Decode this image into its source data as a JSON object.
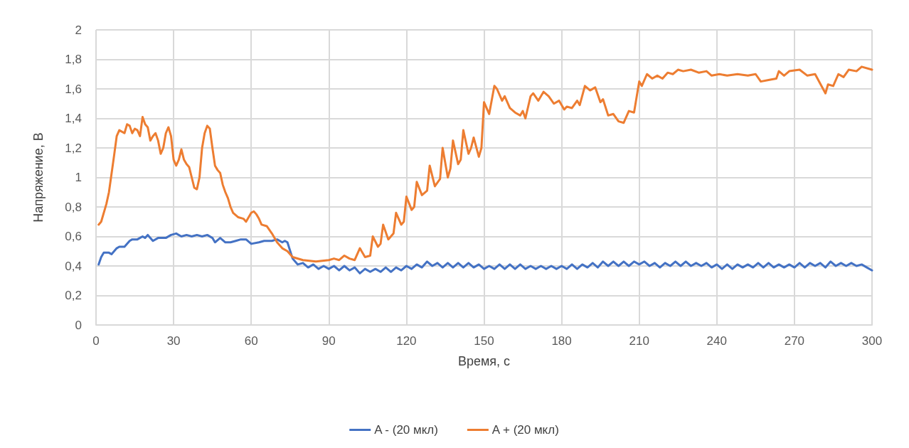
{
  "chart_data": {
    "type": "line",
    "xlabel": "Время, с",
    "ylabel": "Напряжение, В",
    "legend": "bottom",
    "grid": true,
    "marker": "none",
    "line_style": "solid",
    "xlim": [
      0,
      300
    ],
    "xticks": [
      0,
      30,
      60,
      90,
      120,
      150,
      180,
      210,
      240,
      270,
      300
    ],
    "ylim": [
      0,
      2
    ],
    "yticks": [
      0,
      {
        "value": 0.2,
        "label": "0,2"
      },
      {
        "value": 0.4,
        "label": "0,4"
      },
      {
        "value": 0.6,
        "label": "0,6"
      },
      {
        "value": 0.8,
        "label": "0,8"
      },
      1,
      {
        "value": 1.2,
        "label": "1,2"
      },
      {
        "value": 1.4,
        "label": "1,4"
      },
      {
        "value": 1.6,
        "label": "1,6"
      },
      {
        "value": 1.8,
        "label": "1,8"
      },
      2
    ],
    "series": [
      {
        "name": "A - (20 мкл)",
        "color": "#4472c4",
        "x": [
          1,
          2,
          3,
          5,
          6,
          8,
          9,
          11,
          13,
          14,
          16,
          18,
          19,
          20,
          22,
          24,
          27,
          29,
          31,
          33,
          35,
          37,
          39,
          41,
          43,
          45,
          46,
          48,
          50,
          52,
          54,
          56,
          58,
          60,
          63,
          65,
          68,
          70,
          72,
          73,
          74,
          76,
          78,
          80,
          82,
          84,
          86,
          88,
          90,
          92,
          94,
          96,
          98,
          100,
          102,
          104,
          106,
          108,
          110,
          112,
          114,
          116,
          118,
          120,
          122,
          124,
          126,
          128,
          130,
          132,
          134,
          136,
          138,
          140,
          142,
          144,
          146,
          148,
          150,
          152,
          154,
          156,
          158,
          160,
          162,
          164,
          166,
          168,
          170,
          172,
          174,
          176,
          178,
          180,
          182,
          184,
          186,
          188,
          190,
          192,
          194,
          196,
          198,
          200,
          202,
          204,
          206,
          208,
          210,
          212,
          214,
          216,
          218,
          220,
          222,
          224,
          226,
          228,
          230,
          232,
          234,
          236,
          238,
          240,
          242,
          244,
          246,
          248,
          250,
          252,
          254,
          256,
          258,
          260,
          262,
          264,
          266,
          268,
          270,
          272,
          274,
          276,
          278,
          280,
          282,
          284,
          286,
          288,
          290,
          292,
          294,
          296,
          298,
          300
        ],
        "values": [
          0.41,
          0.46,
          0.49,
          0.49,
          0.48,
          0.52,
          0.53,
          0.53,
          0.57,
          0.58,
          0.58,
          0.6,
          0.59,
          0.61,
          0.57,
          0.59,
          0.59,
          0.61,
          0.62,
          0.6,
          0.61,
          0.6,
          0.61,
          0.6,
          0.61,
          0.59,
          0.56,
          0.59,
          0.56,
          0.56,
          0.57,
          0.58,
          0.58,
          0.55,
          0.56,
          0.57,
          0.57,
          0.58,
          0.56,
          0.57,
          0.56,
          0.45,
          0.41,
          0.42,
          0.39,
          0.41,
          0.38,
          0.4,
          0.38,
          0.4,
          0.37,
          0.4,
          0.37,
          0.39,
          0.35,
          0.38,
          0.36,
          0.38,
          0.36,
          0.39,
          0.36,
          0.39,
          0.37,
          0.4,
          0.38,
          0.41,
          0.39,
          0.43,
          0.4,
          0.42,
          0.39,
          0.42,
          0.39,
          0.42,
          0.39,
          0.42,
          0.39,
          0.41,
          0.38,
          0.4,
          0.38,
          0.41,
          0.38,
          0.41,
          0.38,
          0.41,
          0.38,
          0.4,
          0.38,
          0.4,
          0.38,
          0.4,
          0.38,
          0.4,
          0.38,
          0.41,
          0.38,
          0.41,
          0.39,
          0.42,
          0.39,
          0.43,
          0.4,
          0.43,
          0.4,
          0.43,
          0.4,
          0.43,
          0.41,
          0.43,
          0.4,
          0.42,
          0.39,
          0.42,
          0.4,
          0.43,
          0.4,
          0.43,
          0.4,
          0.42,
          0.4,
          0.42,
          0.39,
          0.41,
          0.38,
          0.41,
          0.38,
          0.41,
          0.39,
          0.41,
          0.39,
          0.42,
          0.39,
          0.42,
          0.39,
          0.41,
          0.39,
          0.41,
          0.39,
          0.42,
          0.39,
          0.42,
          0.4,
          0.42,
          0.39,
          0.43,
          0.4,
          0.42,
          0.4,
          0.42,
          0.4,
          0.41,
          0.39,
          0.37
        ]
      },
      {
        "name": "A + (20 мкл)",
        "color": "#ed7d31",
        "x": [
          1,
          2,
          4,
          5,
          7,
          8,
          9,
          11,
          12,
          13,
          14,
          15,
          16,
          17,
          18,
          19,
          20,
          21,
          22,
          23,
          24,
          25,
          26,
          27,
          28,
          29,
          30,
          31,
          32,
          33,
          34,
          35,
          36,
          37,
          38,
          39,
          40,
          41,
          42,
          43,
          44,
          45,
          46,
          47,
          48,
          49,
          50,
          51,
          52,
          53,
          55,
          57,
          58,
          59,
          60,
          61,
          62,
          63,
          64,
          66,
          68,
          70,
          72,
          74,
          76,
          80,
          85,
          90,
          92,
          94,
          96,
          98,
          100,
          102,
          104,
          106,
          107,
          109,
          110,
          111,
          113,
          115,
          116,
          118,
          119,
          120,
          122,
          123,
          124,
          126,
          128,
          129,
          131,
          133,
          134,
          136,
          137,
          138,
          140,
          141,
          142,
          144,
          145,
          146,
          148,
          149,
          150,
          152,
          154,
          155,
          157,
          158,
          160,
          162,
          164,
          165,
          166,
          168,
          169,
          171,
          173,
          175,
          177,
          179,
          181,
          182,
          184,
          186,
          187,
          189,
          191,
          193,
          195,
          196,
          198,
          200,
          202,
          204,
          206,
          208,
          210,
          211,
          213,
          215,
          217,
          219,
          221,
          223,
          225,
          227,
          230,
          233,
          236,
          238,
          241,
          244,
          248,
          252,
          255,
          257,
          260,
          263,
          264,
          266,
          268,
          272,
          275,
          278,
          282,
          283,
          285,
          287,
          289,
          291,
          294,
          296,
          300
        ],
        "values": [
          0.68,
          0.7,
          0.82,
          0.9,
          1.15,
          1.28,
          1.32,
          1.3,
          1.36,
          1.35,
          1.3,
          1.33,
          1.32,
          1.28,
          1.41,
          1.36,
          1.34,
          1.25,
          1.28,
          1.3,
          1.25,
          1.16,
          1.2,
          1.3,
          1.34,
          1.28,
          1.12,
          1.08,
          1.12,
          1.19,
          1.12,
          1.09,
          1.07,
          1.0,
          0.93,
          0.92,
          1.0,
          1.2,
          1.3,
          1.35,
          1.33,
          1.2,
          1.08,
          1.05,
          1.03,
          0.95,
          0.9,
          0.86,
          0.8,
          0.76,
          0.73,
          0.72,
          0.7,
          0.73,
          0.76,
          0.77,
          0.75,
          0.72,
          0.68,
          0.67,
          0.62,
          0.56,
          0.52,
          0.5,
          0.46,
          0.44,
          0.43,
          0.44,
          0.45,
          0.44,
          0.47,
          0.45,
          0.44,
          0.52,
          0.46,
          0.47,
          0.6,
          0.53,
          0.55,
          0.68,
          0.58,
          0.62,
          0.76,
          0.68,
          0.7,
          0.87,
          0.78,
          0.8,
          0.97,
          0.88,
          0.91,
          1.08,
          0.94,
          0.99,
          1.2,
          1.0,
          1.06,
          1.25,
          1.09,
          1.12,
          1.32,
          1.16,
          1.2,
          1.27,
          1.14,
          1.2,
          1.51,
          1.43,
          1.62,
          1.6,
          1.52,
          1.55,
          1.47,
          1.44,
          1.42,
          1.45,
          1.4,
          1.55,
          1.57,
          1.52,
          1.58,
          1.55,
          1.5,
          1.52,
          1.46,
          1.48,
          1.47,
          1.52,
          1.49,
          1.62,
          1.59,
          1.61,
          1.51,
          1.53,
          1.42,
          1.43,
          1.38,
          1.37,
          1.45,
          1.44,
          1.65,
          1.62,
          1.7,
          1.67,
          1.69,
          1.67,
          1.71,
          1.7,
          1.73,
          1.72,
          1.73,
          1.71,
          1.72,
          1.69,
          1.7,
          1.69,
          1.7,
          1.69,
          1.7,
          1.65,
          1.66,
          1.67,
          1.72,
          1.69,
          1.72,
          1.73,
          1.69,
          1.7,
          1.57,
          1.63,
          1.62,
          1.7,
          1.68,
          1.73,
          1.72,
          1.75,
          1.73
        ]
      }
    ]
  }
}
